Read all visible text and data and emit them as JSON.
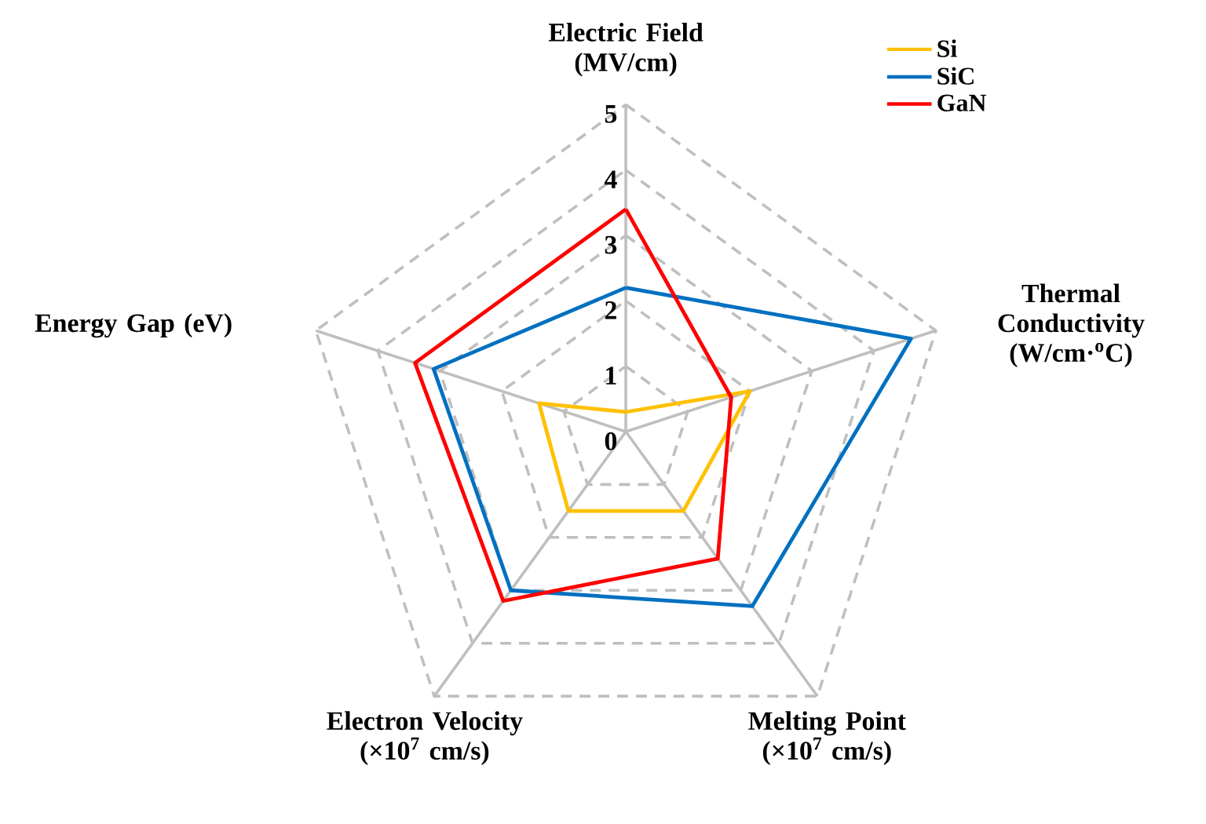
{
  "chart_data": {
    "type": "radar",
    "categories": [
      "Electric Field (MV/cm)",
      "Thermal Conductivity (W/cm·$^{o}$C)",
      "Melting Point (×10$^{7}$ cm/s)",
      "Electron Velocity (×10$^{7}$ cm/s)",
      "Energy Gap (eV)"
    ],
    "ylim": [
      0,
      5
    ],
    "yticks": [
      0,
      1,
      2,
      3,
      4,
      5
    ],
    "grid": true,
    "legend": "top right",
    "line_style": "solid",
    "series": [
      {
        "name": "Si",
        "color": "#ffc000",
        "values": [
          0.3,
          2.0,
          1.5,
          1.5,
          1.4
        ]
      },
      {
        "name": "SiC",
        "color": "#0070c0",
        "values": [
          2.2,
          4.6,
          3.3,
          3.0,
          3.1
        ]
      },
      {
        "name": "GaN",
        "color": "#ff0000",
        "values": [
          3.4,
          1.7,
          2.4,
          3.2,
          3.4
        ]
      }
    ]
  }
}
